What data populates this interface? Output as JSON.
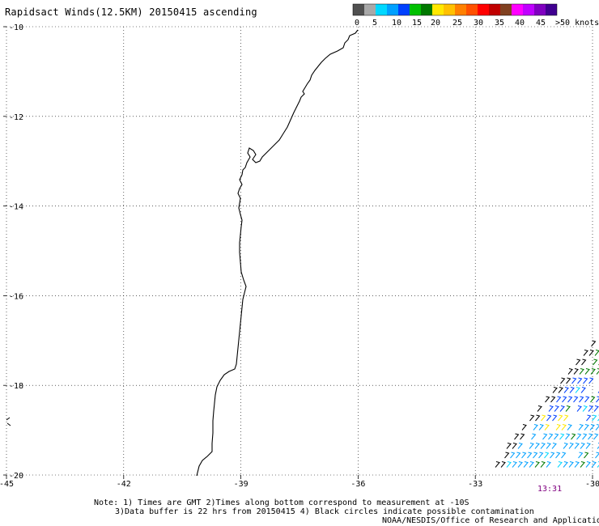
{
  "title": "Rapidsact Winds(12.5KM) 20150415 ascending",
  "colorbar": {
    "colors": [
      "#505050",
      "#a8a8a8",
      "#00d8ff",
      "#00a0ff",
      "#0040ff",
      "#00c000",
      "#007800",
      "#ffe800",
      "#ffc000",
      "#ff8000",
      "#ff5000",
      "#ff0000",
      "#c00000",
      "#804020",
      "#ff00ff",
      "#c000ff",
      "#8000c0",
      "#400090"
    ],
    "labels": [
      "0",
      "5",
      "10",
      "15",
      "20",
      "25",
      "30",
      "35",
      "40",
      "45",
      ">50 knots"
    ]
  },
  "map": {
    "lon_range": [
      -45,
      -30
    ],
    "lat_range": [
      -20,
      -10
    ],
    "lon_ticks": [
      "-45",
      "-42",
      "-39",
      "-36",
      "-33",
      "-30"
    ],
    "lat_ticks": [
      "-10",
      "-12",
      "-14",
      "-16",
      "-18",
      "-20"
    ],
    "grid": "dotted"
  },
  "pass_time": "13:31",
  "notes": {
    "line1": "Note: 1) Times are GMT 2)Times along bottom correspond to measurement at -10S",
    "line2": "3)Data buffer is 22 hrs from 20150415 4) Black circles indicate possible contamination",
    "line3": "NOAA/NESDIS/Office of Research and Applications"
  }
}
